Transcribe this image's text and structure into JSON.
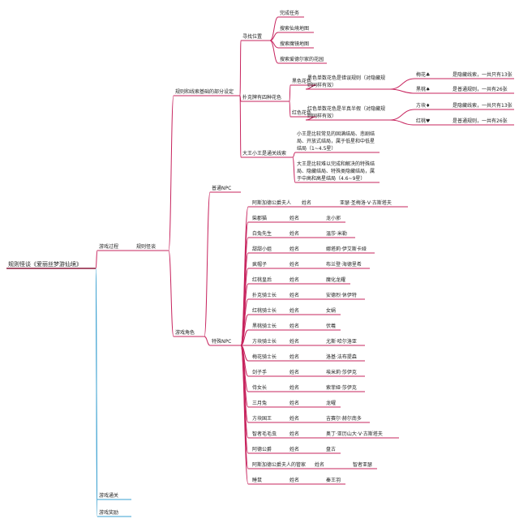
{
  "mindmap": {
    "label": "规则怪谈《爱丽丝梦游仙境》",
    "children": [
      {
        "label": "游戏过程",
        "children": [
          {
            "label": "规则怪谈",
            "children": [
              {
                "label": "规则和线索基础的部分设定",
                "children": [
                  {
                    "label": "寻找位置",
                    "children": [
                      {
                        "label": "完成任务"
                      },
                      {
                        "label": "搜索仙境地图"
                      },
                      {
                        "label": "搜索魔镜地图"
                      },
                      {
                        "label": "搜索爱德尔家的花园"
                      }
                    ]
                  },
                  {
                    "label": "扑克牌有四种花色",
                    "children": [
                      {
                        "label": "黑色花色",
                        "children": [
                          {
                            "lines": [
                              "黑色单数花色是错误规则（对隐藏规",
                              "则同样有效）"
                            ],
                            "children": [
                              {
                                "label": "梅花♣",
                                "children": [
                                  {
                                    "label": "是隐藏线索，一共只有13张"
                                  }
                                ]
                              },
                              {
                                "label": "黑桃♠",
                                "children": [
                                  {
                                    "label": "是普通规则，一共有26张"
                                  }
                                ]
                              }
                            ]
                          }
                        ]
                      },
                      {
                        "label": "红色花色",
                        "children": [
                          {
                            "lines": [
                              "红色单数花色是半真半假（对隐藏规",
                              "则同样有效）"
                            ],
                            "children": [
                              {
                                "label": "方块♦",
                                "children": [
                                  {
                                    "label": "是隐藏线索，一共只有13张"
                                  }
                                ]
                              },
                              {
                                "label": "红桃♥",
                                "children": [
                                  {
                                    "label": "是普通规则，一共有26张"
                                  }
                                ]
                              }
                            ]
                          }
                        ]
                      }
                    ]
                  },
                  {
                    "label": "大王小王是通关线索",
                    "children": [
                      {
                        "lines": [
                          "小王是比较常见的固满结局、悲剧结",
                          "局、开放式结局，属于低星和中低星",
                          "结局（1~4.5星）"
                        ]
                      },
                      {
                        "lines": [
                          "大王是比较难以完成和解决的特殊结",
                          "局、隐藏结局、特殊类隐藏结局，属",
                          "于中高和高星结局（4.6~9星）"
                        ]
                      }
                    ]
                  }
                ]
              },
              {
                "label": "游戏角色",
                "children": [
                  {
                    "label": "普通NPC"
                  },
                  {
                    "label": "特殊NPC",
                    "rows": [
                      [
                        "阿斯加德公爵夫人",
                        "姓名",
                        "亚瑟·圣梅洛·V·古斯塔夫"
                      ],
                      [
                        "柴郡猫",
                        "姓名",
                        "龙小邪"
                      ],
                      [
                        "白兔先生",
                        "姓名",
                        "温莎·米勒"
                      ],
                      [
                        "甜甜小姐",
                        "姓名",
                        "娜塔莉·伊艾斯卡娅"
                      ],
                      [
                        "疯帽子",
                        "姓名",
                        "布兰登·海德里希"
                      ],
                      [
                        "红桃皇后",
                        "姓名",
                        "魔化龙耀"
                      ],
                      [
                        "扑克骑士长",
                        "姓名",
                        "安德烈·休伊特"
                      ],
                      [
                        "红桃骑士长",
                        "姓名",
                        "女娲"
                      ],
                      [
                        "黑桃骑士长",
                        "姓名",
                        "伏羲"
                      ],
                      [
                        "方块骑士长",
                        "姓名",
                        "尤斯·哈尔洛亚"
                      ],
                      [
                        "梅花骑士长",
                        "姓名",
                        "洛基·法布提森"
                      ],
                      [
                        "剑子手",
                        "姓名",
                        "埃米莉·莎伊克"
                      ],
                      [
                        "侍女长",
                        "姓名",
                        "索菲娅·莎伊克"
                      ],
                      [
                        "三月兔",
                        "姓名",
                        "龙曜"
                      ],
                      [
                        "方块国王",
                        "姓名",
                        "吉赛尔·赫尔南多"
                      ],
                      [
                        "智者毛毛虫",
                        "姓名",
                        "奥丁·亚历山大·V·古斯塔夫"
                      ],
                      [
                        "阿德公爵",
                        "姓名",
                        "盘古"
                      ],
                      [
                        "阿斯加德公爵夫人的管家",
                        "姓名",
                        "智者亚瑟"
                      ],
                      [
                        "睡鼠",
                        "姓名",
                        "秦王羽"
                      ]
                    ]
                  }
                ]
              }
            ]
          }
        ]
      },
      {
        "label": "游戏通关"
      },
      {
        "label": "游戏奖励"
      }
    ]
  }
}
